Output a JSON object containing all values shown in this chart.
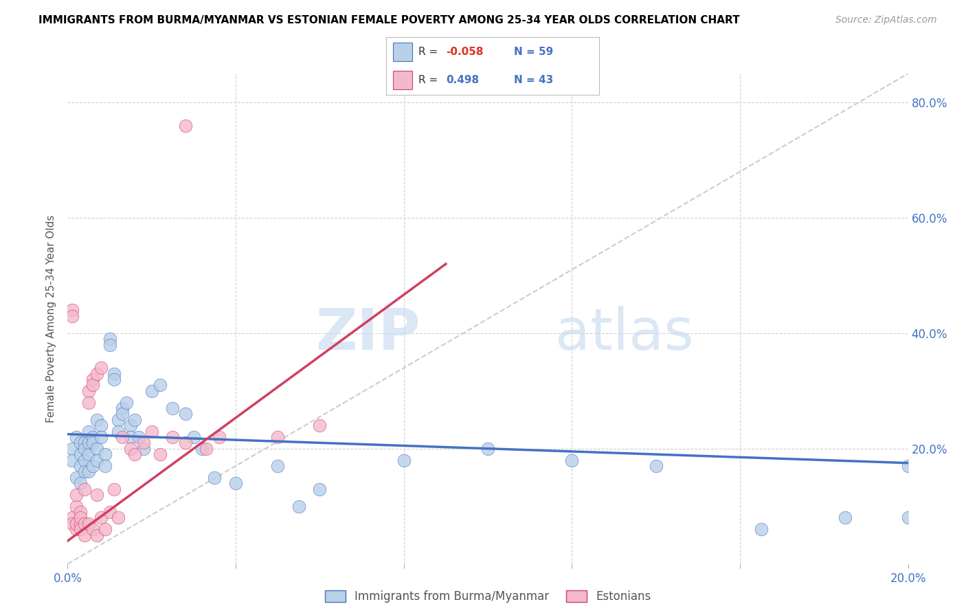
{
  "title": "IMMIGRANTS FROM BURMA/MYANMAR VS ESTONIAN FEMALE POVERTY AMONG 25-34 YEAR OLDS CORRELATION CHART",
  "source": "Source: ZipAtlas.com",
  "ylabel": "Female Poverty Among 25-34 Year Olds",
  "legend_label_1": "Immigrants from Burma/Myanmar",
  "legend_label_2": "Estonians",
  "R1": -0.058,
  "N1": 59,
  "R2": 0.498,
  "N2": 43,
  "xmin": 0.0,
  "xmax": 0.2,
  "ymin": 0.0,
  "ymax": 0.85,
  "color_blue": "#b8d0e8",
  "color_pink": "#f4b8cc",
  "color_blue_line": "#4472c4",
  "color_pink_line": "#d04060",
  "color_diag": "#cccccc",
  "blue_trend_x0": 0.0,
  "blue_trend_y0": 0.225,
  "blue_trend_x1": 0.2,
  "blue_trend_y1": 0.175,
  "pink_trend_x0": 0.0,
  "pink_trend_y0": 0.04,
  "pink_trend_x1": 0.09,
  "pink_trend_y1": 0.52,
  "blue_x": [
    0.001,
    0.001,
    0.002,
    0.002,
    0.003,
    0.003,
    0.003,
    0.003,
    0.004,
    0.004,
    0.004,
    0.004,
    0.005,
    0.005,
    0.005,
    0.005,
    0.006,
    0.006,
    0.006,
    0.007,
    0.007,
    0.007,
    0.008,
    0.008,
    0.009,
    0.009,
    0.01,
    0.01,
    0.011,
    0.011,
    0.012,
    0.012,
    0.013,
    0.013,
    0.014,
    0.015,
    0.015,
    0.016,
    0.017,
    0.018,
    0.02,
    0.022,
    0.025,
    0.028,
    0.03,
    0.032,
    0.035,
    0.04,
    0.05,
    0.055,
    0.06,
    0.08,
    0.1,
    0.12,
    0.14,
    0.165,
    0.185,
    0.2,
    0.2
  ],
  "blue_y": [
    0.2,
    0.18,
    0.22,
    0.15,
    0.21,
    0.19,
    0.17,
    0.14,
    0.21,
    0.2,
    0.18,
    0.16,
    0.23,
    0.19,
    0.16,
    0.21,
    0.22,
    0.21,
    0.17,
    0.25,
    0.2,
    0.18,
    0.24,
    0.22,
    0.19,
    0.17,
    0.39,
    0.38,
    0.33,
    0.32,
    0.25,
    0.23,
    0.27,
    0.26,
    0.28,
    0.24,
    0.22,
    0.25,
    0.22,
    0.2,
    0.3,
    0.31,
    0.27,
    0.26,
    0.22,
    0.2,
    0.15,
    0.14,
    0.17,
    0.1,
    0.13,
    0.18,
    0.2,
    0.18,
    0.17,
    0.06,
    0.08,
    0.17,
    0.08
  ],
  "pink_x": [
    0.001,
    0.001,
    0.001,
    0.001,
    0.002,
    0.002,
    0.002,
    0.002,
    0.003,
    0.003,
    0.003,
    0.003,
    0.004,
    0.004,
    0.004,
    0.005,
    0.005,
    0.005,
    0.006,
    0.006,
    0.006,
    0.007,
    0.007,
    0.007,
    0.008,
    0.008,
    0.009,
    0.01,
    0.011,
    0.012,
    0.013,
    0.015,
    0.016,
    0.018,
    0.02,
    0.022,
    0.025,
    0.028,
    0.033,
    0.036,
    0.05,
    0.06,
    0.028
  ],
  "pink_y": [
    0.44,
    0.43,
    0.08,
    0.07,
    0.1,
    0.06,
    0.12,
    0.07,
    0.09,
    0.07,
    0.08,
    0.06,
    0.13,
    0.07,
    0.05,
    0.3,
    0.28,
    0.07,
    0.32,
    0.31,
    0.06,
    0.33,
    0.12,
    0.05,
    0.34,
    0.08,
    0.06,
    0.09,
    0.13,
    0.08,
    0.22,
    0.2,
    0.19,
    0.21,
    0.23,
    0.19,
    0.22,
    0.21,
    0.2,
    0.22,
    0.22,
    0.24,
    0.76
  ]
}
